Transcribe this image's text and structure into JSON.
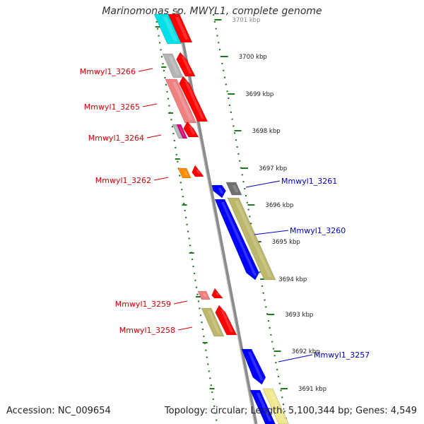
{
  "title": "Marinomonas sp. MWYL1, complete genome",
  "accession": "Accession: NC_009654",
  "stats": "Topology: circular; Length: 5,100,344 bp; Genes: 4,549",
  "colors": {
    "backbone": "#8c8c8c",
    "tick": "#1f7a1f",
    "label_left": "#d00000",
    "label_right": "#0000c0",
    "ruler_text": "#222222"
  },
  "ruler": [
    "3701 kbp",
    "3700 kbp",
    "3699 kbp",
    "3698 kbp",
    "3697 kbp",
    "3696 kbp",
    "3695 kbp",
    "3694 kbp",
    "3693 kbp",
    "3692 kbp",
    "3691 kbp"
  ],
  "gene_labels": {
    "left": [
      "Mmwyl1_3266",
      "Mmwyl1_3265",
      "Mmwyl1_3264",
      "Mmwyl1_3262",
      "Mmwyl1_3259",
      "Mmwyl1_3258"
    ],
    "right": [
      "Mmwyl1_3261",
      "Mmwyl1_3260",
      "Mmwyl1_3257"
    ]
  }
}
